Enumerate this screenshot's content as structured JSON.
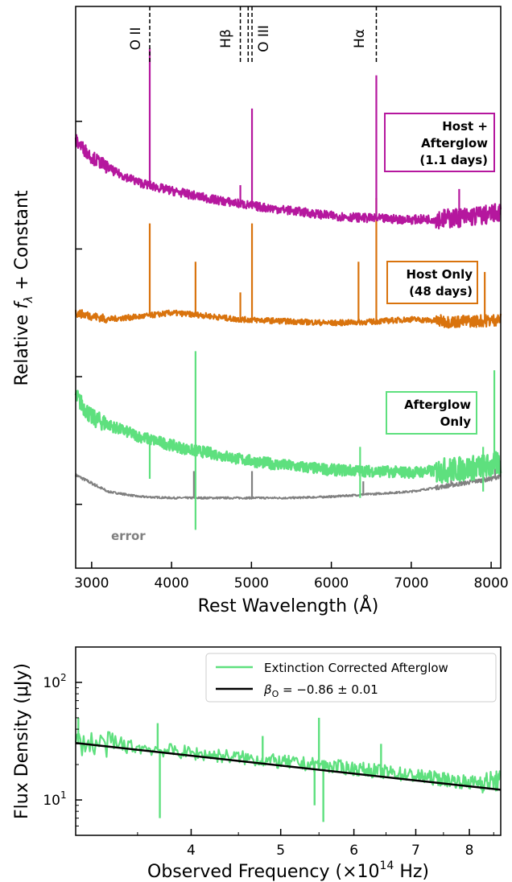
{
  "chart_data": [
    {
      "type": "line",
      "title": "",
      "xlabel": "Rest Wavelength (Å)",
      "ylabel": "Relative f_λ + Constant",
      "xlim": [
        2800,
        8120
      ],
      "xticks": [
        3000,
        4000,
        5000,
        6000,
        7000,
        8000
      ],
      "yticks": "no labels",
      "line_markers": [
        {
          "label": "O II",
          "x": 3727
        },
        {
          "label": "Hβ",
          "x": 4861
        },
        {
          "label": "O III",
          "x": 4959
        },
        {
          "label": "O III",
          "x": 5007
        },
        {
          "label": "Hα",
          "x": 6563
        }
      ],
      "line_marker_labels": {
        "oii": "O II",
        "hb": "Hβ",
        "oiii": "O III",
        "ha": "Hα"
      },
      "series": [
        {
          "name": "Host + Afterglow (1.1 days)",
          "legend_lines": [
            "Host +",
            "Afterglow",
            "(1.1 days)"
          ],
          "color": "#b5179e",
          "points": [
            [
              2800,
              3.35
            ],
            [
              3000,
              3.22
            ],
            [
              3300,
              3.1
            ],
            [
              3600,
              3.02
            ],
            [
              3900,
              2.97
            ],
            [
              4200,
              2.93
            ],
            [
              4500,
              2.89
            ],
            [
              4800,
              2.86
            ],
            [
              5100,
              2.83
            ],
            [
              5500,
              2.8
            ],
            [
              6000,
              2.76
            ],
            [
              6500,
              2.74
            ],
            [
              7000,
              2.73
            ],
            [
              7500,
              2.74
            ],
            [
              8000,
              2.77
            ],
            [
              8100,
              2.79
            ]
          ],
          "emission_peaks": [
            [
              3727,
              4.07
            ],
            [
              4861,
              3.0
            ],
            [
              5007,
              3.6
            ],
            [
              6563,
              3.86
            ],
            [
              7600,
              2.97
            ]
          ]
        },
        {
          "name": "Host Only (48 days)",
          "legend_lines": [
            "Host Only",
            "(48 days)"
          ],
          "color": "#d9730d",
          "points": [
            [
              2800,
              2.0
            ],
            [
              3200,
              1.95
            ],
            [
              3600,
              1.97
            ],
            [
              4000,
              2.0
            ],
            [
              4400,
              1.98
            ],
            [
              4800,
              1.95
            ],
            [
              5200,
              1.94
            ],
            [
              5600,
              1.93
            ],
            [
              6000,
              1.92
            ],
            [
              6500,
              1.93
            ],
            [
              7000,
              1.95
            ],
            [
              7500,
              1.93
            ],
            [
              8000,
              1.94
            ],
            [
              8100,
              1.95
            ]
          ],
          "emission_peaks": [
            [
              3727,
              2.7
            ],
            [
              4300,
              2.4
            ],
            [
              4861,
              2.16
            ],
            [
              5007,
              2.7
            ],
            [
              6340,
              2.4
            ],
            [
              6563,
              2.9
            ],
            [
              7920,
              2.32
            ]
          ]
        },
        {
          "name": "Afterglow Only",
          "legend_lines": [
            "Afterglow",
            "Only"
          ],
          "color": "#5ee07e",
          "points": [
            [
              2800,
              1.35
            ],
            [
              3000,
              1.18
            ],
            [
              3300,
              1.1
            ],
            [
              3600,
              1.03
            ],
            [
              3900,
              0.98
            ],
            [
              4200,
              0.93
            ],
            [
              4500,
              0.9
            ],
            [
              4800,
              0.86
            ],
            [
              5100,
              0.83
            ],
            [
              5500,
              0.8
            ],
            [
              6000,
              0.77
            ],
            [
              6500,
              0.76
            ],
            [
              7000,
              0.75
            ],
            [
              7500,
              0.77
            ],
            [
              8000,
              0.8
            ],
            [
              8100,
              0.82
            ]
          ],
          "emission_peaks": [
            [
              4300,
              1.7
            ],
            [
              6360,
              0.95
            ],
            [
              7900,
              0.95
            ],
            [
              8040,
              1.55
            ]
          ]
        },
        {
          "name": "error",
          "color": "#808080",
          "points": [
            [
              2800,
              0.73
            ],
            [
              3200,
              0.6
            ],
            [
              3600,
              0.56
            ],
            [
              4000,
              0.55
            ],
            [
              4500,
              0.55
            ],
            [
              5000,
              0.55
            ],
            [
              5500,
              0.55
            ],
            [
              6000,
              0.56
            ],
            [
              6500,
              0.58
            ],
            [
              7000,
              0.6
            ],
            [
              7500,
              0.65
            ],
            [
              8000,
              0.7
            ],
            [
              8100,
              0.72
            ]
          ],
          "emission_peaks": [
            [
              4280,
              0.76
            ],
            [
              5007,
              0.76
            ],
            [
              6400,
              0.68
            ],
            [
              7500,
              0.72
            ],
            [
              8050,
              0.78
            ]
          ]
        }
      ],
      "ylim_internal": [
        0.0,
        4.4
      ]
    },
    {
      "type": "line",
      "title": "",
      "xlabel": "Observed Frequency (×10¹⁴ Hz)",
      "xlabel_main": "Observed Frequency (×10",
      "xlabel_sup": "14",
      "xlabel_tail": " Hz)",
      "ylabel": "Flux Density (μJy)",
      "xscale": "log",
      "yscale": "log",
      "xlim": [
        3.0,
        8.65
      ],
      "ylim": [
        5,
        200
      ],
      "xticks": [
        4,
        5,
        6,
        7,
        8
      ],
      "yticks": [
        {
          "base": "10",
          "exp": "1",
          "value": 10
        },
        {
          "base": "10",
          "exp": "2",
          "value": 100
        }
      ],
      "legend_position": "top-right",
      "series": [
        {
          "name": "Extinction Corrected Afterglow",
          "color": "#5ee07e",
          "trend": [
            [
              3.0,
              31
            ],
            [
              4.0,
              25
            ],
            [
              5.0,
              21
            ],
            [
              6.0,
              18.5
            ],
            [
              7.0,
              16
            ],
            [
              8.0,
              14
            ],
            [
              8.65,
              14.5
            ]
          ],
          "spikes": [
            [
              3.02,
              50
            ],
            [
              3.68,
              45
            ],
            [
              3.7,
              7
            ],
            [
              4.78,
              35
            ],
            [
              5.44,
              9
            ],
            [
              5.5,
              50
            ],
            [
              5.56,
              6.5
            ],
            [
              6.42,
              30
            ]
          ]
        },
        {
          "name": "β_O = −0.86 ± 0.01",
          "legend_text": {
            "pre": "β",
            "sub": "O",
            "post": " = −0.86 ± 0.01"
          },
          "color": "#000000",
          "beta": -0.86,
          "beta_err": 0.01,
          "endpoints": [
            [
              3.0,
              30.5
            ],
            [
              8.65,
              12.2
            ]
          ]
        }
      ]
    }
  ]
}
